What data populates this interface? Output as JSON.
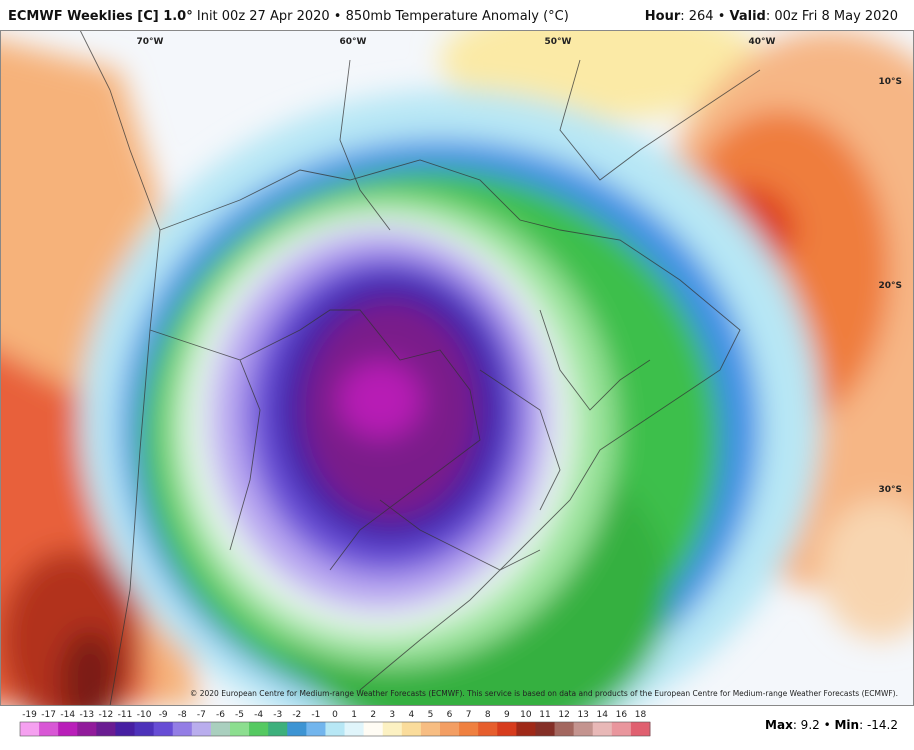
{
  "header": {
    "title": "ECMWF Weeklies [C] 1.0°",
    "subtitle": "Init 00z 27 Apr 2020 • 850mb Temperature Anomaly (°C)",
    "hour_label": "Hour",
    "hour_value": ": 264 • ",
    "valid_label": "Valid",
    "valid_value": ": 00z Fri 8 May 2020"
  },
  "map": {
    "longitude_labels": [
      "70°W",
      "60°W",
      "50°W",
      "40°W"
    ],
    "latitude_labels": [
      "10°S",
      "20°S",
      "30°S"
    ],
    "copyright": "© 2020 European Centre for Medium-range Weather Forecasts (ECMWF). This service is based on data and products of the European Centre for Medium-range Weather Forecasts (ECMWF)."
  },
  "colorbar": {
    "labels": [
      -19,
      -17,
      -14,
      -13,
      -12,
      -11,
      -10,
      -9,
      -8,
      -7,
      -6,
      -5,
      -4,
      -3,
      -2,
      -1,
      0,
      1,
      2,
      3,
      4,
      5,
      6,
      7,
      8,
      9,
      10,
      11,
      12,
      13,
      14,
      16,
      18
    ]
  },
  "footer": {
    "max_label": "Max",
    "max_value": ": 9.2 • ",
    "min_label": "Min",
    "min_value": ": -14.2"
  }
}
